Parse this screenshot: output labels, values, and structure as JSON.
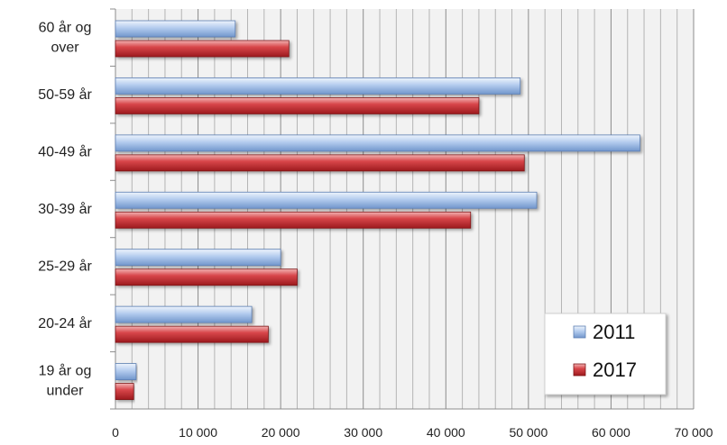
{
  "chart_data": {
    "type": "bar",
    "orientation": "horizontal",
    "categories": [
      [
        "60 år og",
        "over"
      ],
      [
        "50-59 år"
      ],
      [
        "40-49 år"
      ],
      [
        "30-39 år"
      ],
      [
        "25-29 år"
      ],
      [
        "20-24 år"
      ],
      [
        "19 år og",
        "under"
      ]
    ],
    "series": [
      {
        "name": "2011",
        "color": "#9bb9e3",
        "values": [
          14500,
          49000,
          63500,
          51000,
          20000,
          16500,
          2500
        ]
      },
      {
        "name": "2017",
        "color": "#c0282d",
        "values": [
          21000,
          44000,
          49500,
          43000,
          22000,
          18500,
          2200
        ]
      }
    ],
    "xlim": [
      0,
      70000
    ],
    "major_ticks": [
      0,
      10000,
      20000,
      30000,
      40000,
      50000,
      60000,
      70000
    ],
    "tick_labels": [
      "0",
      "10 000",
      "20 000",
      "30 000",
      "40 000",
      "50 000",
      "60 000",
      "70 000"
    ],
    "minor_tick_step": 2000,
    "grid": true,
    "legend": "bottom-right",
    "title": "",
    "xlabel": "",
    "ylabel": ""
  }
}
